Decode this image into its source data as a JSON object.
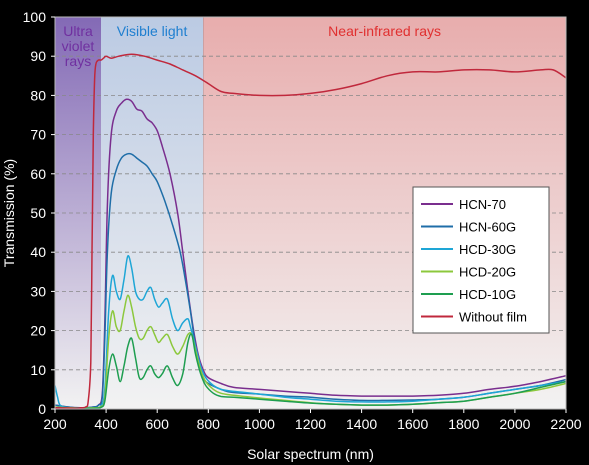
{
  "chart_data": {
    "type": "line",
    "title": "",
    "xlabel": "Solar spectrum (nm)",
    "ylabel": "Transmission (%)",
    "xlim": [
      200,
      2200
    ],
    "ylim": [
      0,
      100
    ],
    "x_ticks": [
      200,
      400,
      600,
      800,
      1000,
      1200,
      1400,
      1600,
      1800,
      2000,
      2200
    ],
    "y_ticks": [
      0,
      10,
      20,
      30,
      40,
      50,
      60,
      70,
      80,
      90,
      100
    ],
    "grid": "horizontal dashed",
    "legend_position": "right",
    "regions": [
      {
        "label": "Ultra\nviolet\nrays",
        "x_range": [
          200,
          380
        ],
        "color": "#8a6fbf",
        "label_color": "#7030a0"
      },
      {
        "label": "Visible light",
        "x_range": [
          380,
          780
        ],
        "color": "#c5d5ef",
        "label_color": "#1f7fd0"
      },
      {
        "label": "Near-infrared rays",
        "x_range": [
          780,
          2200
        ],
        "color": "#f4b6b6",
        "label_color": "#e03030"
      }
    ],
    "series": [
      {
        "name": "HCN-70",
        "color": "#7a2e8e",
        "points": [
          [
            200,
            1
          ],
          [
            250,
            0.5
          ],
          [
            300,
            0.3
          ],
          [
            350,
            0.5
          ],
          [
            370,
            1
          ],
          [
            385,
            4
          ],
          [
            395,
            22
          ],
          [
            405,
            52
          ],
          [
            420,
            70
          ],
          [
            440,
            76
          ],
          [
            460,
            78
          ],
          [
            480,
            79
          ],
          [
            500,
            78.5
          ],
          [
            520,
            76.5
          ],
          [
            540,
            76
          ],
          [
            560,
            74
          ],
          [
            580,
            73
          ],
          [
            600,
            71
          ],
          [
            620,
            67
          ],
          [
            650,
            60
          ],
          [
            680,
            50
          ],
          [
            700,
            40
          ],
          [
            720,
            30
          ],
          [
            740,
            21
          ],
          [
            760,
            14
          ],
          [
            780,
            10
          ],
          [
            800,
            8
          ],
          [
            850,
            6.5
          ],
          [
            900,
            5.5
          ],
          [
            1000,
            5
          ],
          [
            1100,
            4.5
          ],
          [
            1200,
            4
          ],
          [
            1300,
            3.5
          ],
          [
            1400,
            3.3
          ],
          [
            1500,
            3.3
          ],
          [
            1600,
            3.3
          ],
          [
            1700,
            3.5
          ],
          [
            1800,
            4
          ],
          [
            1900,
            5
          ],
          [
            2000,
            5.8
          ],
          [
            2100,
            7
          ],
          [
            2200,
            8.5
          ]
        ]
      },
      {
        "name": "HCN-60G",
        "color": "#1f6ea8",
        "points": [
          [
            200,
            1
          ],
          [
            250,
            0.5
          ],
          [
            300,
            0.3
          ],
          [
            350,
            0.5
          ],
          [
            370,
            1
          ],
          [
            385,
            3
          ],
          [
            395,
            18
          ],
          [
            405,
            40
          ],
          [
            420,
            55
          ],
          [
            440,
            61
          ],
          [
            460,
            64
          ],
          [
            480,
            65
          ],
          [
            500,
            65
          ],
          [
            520,
            64
          ],
          [
            540,
            63
          ],
          [
            560,
            62
          ],
          [
            580,
            60
          ],
          [
            600,
            58
          ],
          [
            630,
            53
          ],
          [
            660,
            47
          ],
          [
            690,
            40
          ],
          [
            710,
            33
          ],
          [
            730,
            25
          ],
          [
            750,
            16
          ],
          [
            770,
            10
          ],
          [
            790,
            7
          ],
          [
            850,
            5
          ],
          [
            900,
            4.2
          ],
          [
            1000,
            3.8
          ],
          [
            1100,
            3.3
          ],
          [
            1200,
            3
          ],
          [
            1300,
            2.5
          ],
          [
            1400,
            2.2
          ],
          [
            1500,
            2.2
          ],
          [
            1600,
            2.3
          ],
          [
            1700,
            2.5
          ],
          [
            1800,
            3
          ],
          [
            1900,
            4
          ],
          [
            2000,
            5
          ],
          [
            2100,
            6
          ],
          [
            2200,
            7.5
          ]
        ]
      },
      {
        "name": "HCD-30G",
        "color": "#1ea6d6",
        "points": [
          [
            200,
            6
          ],
          [
            210,
            3
          ],
          [
            220,
            1
          ],
          [
            250,
            0.3
          ],
          [
            300,
            0.2
          ],
          [
            350,
            0.3
          ],
          [
            380,
            0.8
          ],
          [
            395,
            5
          ],
          [
            410,
            25
          ],
          [
            425,
            34
          ],
          [
            440,
            30
          ],
          [
            455,
            28
          ],
          [
            470,
            33
          ],
          [
            485,
            39
          ],
          [
            500,
            36
          ],
          [
            515,
            30
          ],
          [
            530,
            28
          ],
          [
            545,
            28
          ],
          [
            560,
            30
          ],
          [
            575,
            31
          ],
          [
            590,
            28
          ],
          [
            605,
            26
          ],
          [
            620,
            27
          ],
          [
            640,
            28
          ],
          [
            660,
            23
          ],
          [
            680,
            20
          ],
          [
            700,
            22
          ],
          [
            720,
            23
          ],
          [
            730,
            21
          ],
          [
            750,
            16
          ],
          [
            770,
            11
          ],
          [
            790,
            8
          ],
          [
            820,
            6
          ],
          [
            850,
            5
          ],
          [
            900,
            4.5
          ],
          [
            1000,
            3.8
          ],
          [
            1100,
            3
          ],
          [
            1200,
            2.5
          ],
          [
            1300,
            2
          ],
          [
            1400,
            1.8
          ],
          [
            1500,
            1.8
          ],
          [
            1600,
            2
          ],
          [
            1700,
            2.5
          ],
          [
            1800,
            3
          ],
          [
            1900,
            4
          ],
          [
            2000,
            5
          ],
          [
            2100,
            6
          ],
          [
            2200,
            7
          ]
        ]
      },
      {
        "name": "HCD-20G",
        "color": "#8cc83c",
        "points": [
          [
            200,
            0.5
          ],
          [
            250,
            0.3
          ],
          [
            300,
            0.2
          ],
          [
            350,
            0.3
          ],
          [
            380,
            0.6
          ],
          [
            395,
            3
          ],
          [
            410,
            18
          ],
          [
            425,
            25
          ],
          [
            440,
            21
          ],
          [
            455,
            20
          ],
          [
            470,
            25
          ],
          [
            485,
            29
          ],
          [
            500,
            26
          ],
          [
            515,
            21
          ],
          [
            530,
            18
          ],
          [
            545,
            18
          ],
          [
            560,
            20
          ],
          [
            575,
            21
          ],
          [
            590,
            19
          ],
          [
            605,
            17
          ],
          [
            620,
            18
          ],
          [
            640,
            19
          ],
          [
            660,
            16
          ],
          [
            680,
            14
          ],
          [
            700,
            16
          ],
          [
            720,
            19
          ],
          [
            735,
            19
          ],
          [
            750,
            15
          ],
          [
            770,
            10
          ],
          [
            790,
            7
          ],
          [
            820,
            5
          ],
          [
            850,
            4
          ],
          [
            900,
            3.5
          ],
          [
            1000,
            2.8
          ],
          [
            1100,
            2.2
          ],
          [
            1200,
            1.6
          ],
          [
            1300,
            1.2
          ],
          [
            1400,
            1
          ],
          [
            1500,
            1
          ],
          [
            1600,
            1.2
          ],
          [
            1700,
            1.6
          ],
          [
            1800,
            2
          ],
          [
            1900,
            3
          ],
          [
            2000,
            4
          ],
          [
            2100,
            5
          ],
          [
            2200,
            6.5
          ]
        ]
      },
      {
        "name": "HCD-10G",
        "color": "#1e9e50",
        "points": [
          [
            200,
            0.3
          ],
          [
            250,
            0.2
          ],
          [
            300,
            0.1
          ],
          [
            350,
            0.2
          ],
          [
            380,
            0.4
          ],
          [
            395,
            2
          ],
          [
            410,
            10
          ],
          [
            425,
            14
          ],
          [
            440,
            11
          ],
          [
            455,
            7
          ],
          [
            470,
            11
          ],
          [
            485,
            16
          ],
          [
            500,
            18
          ],
          [
            515,
            13
          ],
          [
            530,
            8
          ],
          [
            545,
            8
          ],
          [
            560,
            10
          ],
          [
            575,
            11
          ],
          [
            590,
            9
          ],
          [
            605,
            8
          ],
          [
            620,
            9
          ],
          [
            640,
            11
          ],
          [
            660,
            8
          ],
          [
            680,
            6
          ],
          [
            700,
            9
          ],
          [
            720,
            17
          ],
          [
            735,
            19
          ],
          [
            750,
            14
          ],
          [
            770,
            9
          ],
          [
            790,
            6
          ],
          [
            820,
            4
          ],
          [
            850,
            3.2
          ],
          [
            900,
            3
          ],
          [
            1000,
            2.5
          ],
          [
            1100,
            2
          ],
          [
            1200,
            1.5
          ],
          [
            1300,
            1.2
          ],
          [
            1400,
            1
          ],
          [
            1500,
            1
          ],
          [
            1600,
            1.2
          ],
          [
            1700,
            1.6
          ],
          [
            1800,
            2
          ],
          [
            1900,
            3
          ],
          [
            2000,
            4
          ],
          [
            2100,
            5.5
          ],
          [
            2200,
            7
          ]
        ]
      },
      {
        "name": "Without  film",
        "color": "#c0283c",
        "points": [
          [
            200,
            0.3
          ],
          [
            280,
            0.2
          ],
          [
            300,
            0.3
          ],
          [
            320,
            0.5
          ],
          [
            330,
            2
          ],
          [
            340,
            12
          ],
          [
            345,
            40
          ],
          [
            350,
            70
          ],
          [
            355,
            84
          ],
          [
            360,
            88
          ],
          [
            370,
            89
          ],
          [
            380,
            89
          ],
          [
            390,
            89.5
          ],
          [
            400,
            90
          ],
          [
            420,
            89.5
          ],
          [
            450,
            90
          ],
          [
            500,
            90.5
          ],
          [
            550,
            90
          ],
          [
            600,
            89
          ],
          [
            650,
            88
          ],
          [
            700,
            86.5
          ],
          [
            750,
            85
          ],
          [
            800,
            83
          ],
          [
            850,
            81
          ],
          [
            900,
            80.5
          ],
          [
            1000,
            80
          ],
          [
            1100,
            80
          ],
          [
            1200,
            80.5
          ],
          [
            1300,
            81.5
          ],
          [
            1400,
            83
          ],
          [
            1500,
            85
          ],
          [
            1600,
            86
          ],
          [
            1700,
            86
          ],
          [
            1800,
            86.5
          ],
          [
            1900,
            86.5
          ],
          [
            2000,
            86
          ],
          [
            2100,
            86.5
          ],
          [
            2150,
            86.5
          ],
          [
            2200,
            84.5
          ]
        ]
      }
    ]
  }
}
